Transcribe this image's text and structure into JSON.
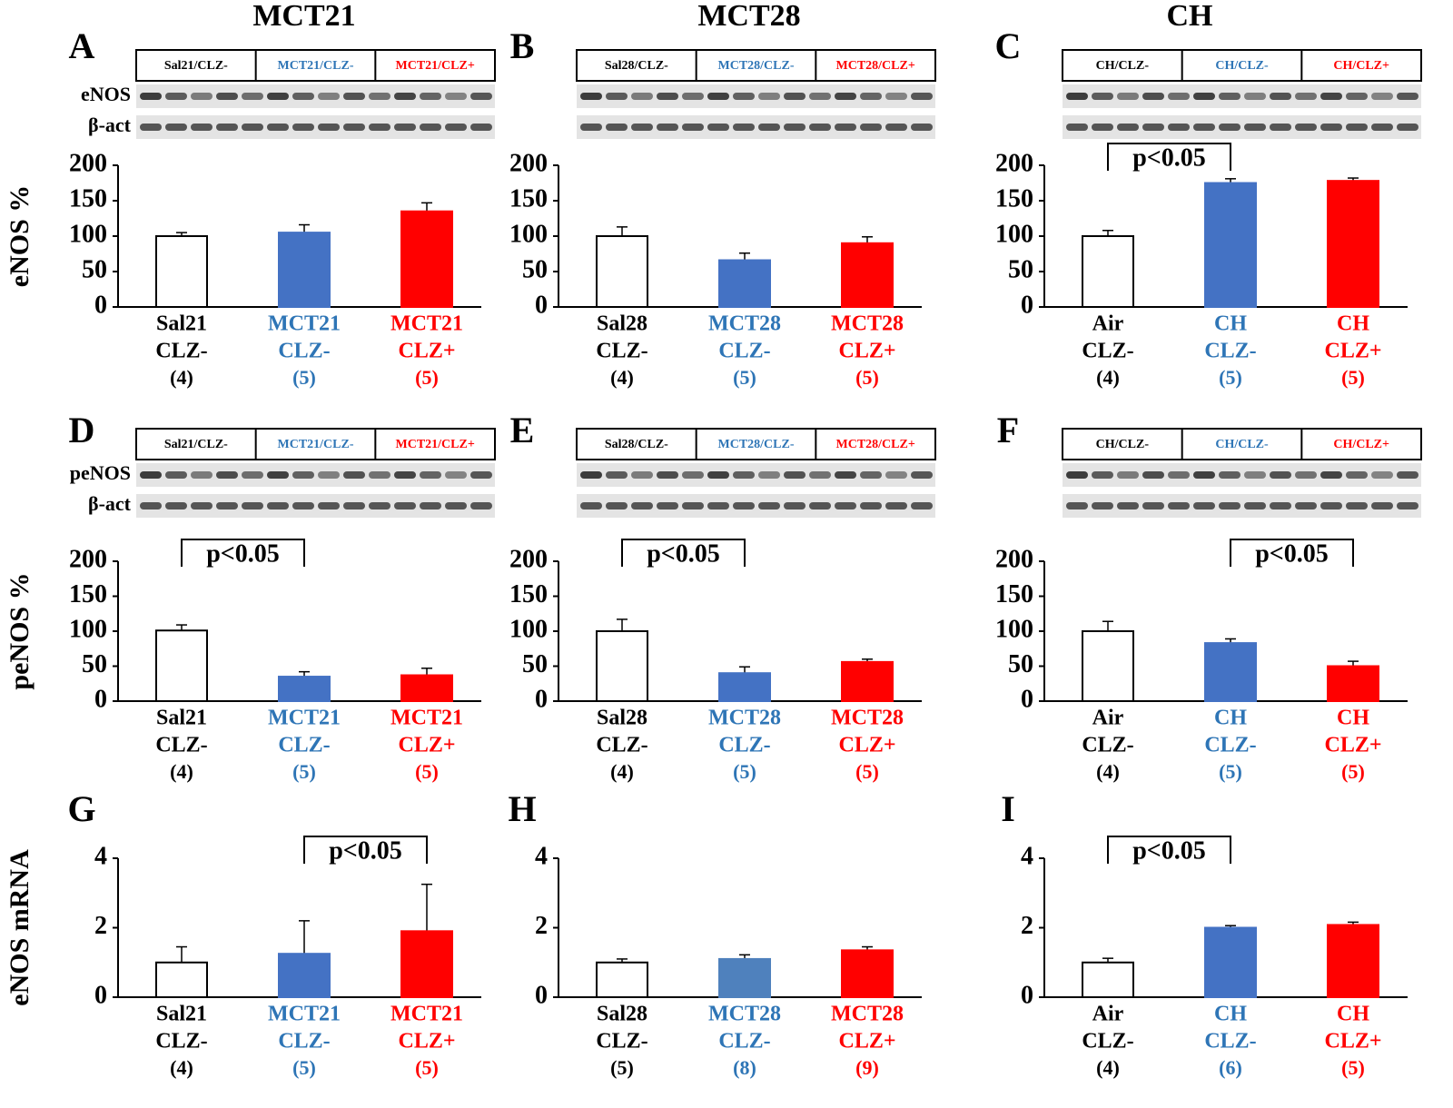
{
  "column_titles": [
    "MCT21",
    "MCT28",
    "CH"
  ],
  "chart_data": [
    {
      "type": "bar",
      "panel_label": "A",
      "ylabel": "eNOS %",
      "blot_labels": [
        "Sal21/CLZ-",
        "MCT21/CLZ-",
        "MCT21/CLZ+"
      ],
      "blot_rows": [
        "eNOS",
        "β-act"
      ],
      "categories": [
        [
          "Sal21",
          "CLZ-",
          "(4)"
        ],
        [
          "MCT21",
          "CLZ-",
          "(5)"
        ],
        [
          "MCT21",
          "CLZ+",
          "(5)"
        ]
      ],
      "values": [
        100,
        105,
        135
      ],
      "errors": [
        5,
        11,
        12
      ],
      "colors": [
        "#ffffff",
        "#4472c4",
        "#ff0000"
      ],
      "category_colors": [
        "#000000",
        "#2e75b6",
        "#ff0000"
      ],
      "ylim": [
        0,
        200
      ],
      "yticks": [
        0,
        50,
        100,
        150,
        200
      ],
      "annotations": []
    },
    {
      "type": "bar",
      "panel_label": "B",
      "blot_labels": [
        "Sal28/CLZ-",
        "MCT28/CLZ-",
        "MCT28/CLZ+"
      ],
      "categories": [
        [
          "Sal28",
          "CLZ-",
          "(4)"
        ],
        [
          "MCT28",
          "CLZ-",
          "(5)"
        ],
        [
          "MCT28",
          "CLZ+",
          "(5)"
        ]
      ],
      "values": [
        100,
        66,
        90
      ],
      "errors": [
        13,
        10,
        9
      ],
      "colors": [
        "#ffffff",
        "#4472c4",
        "#ff0000"
      ],
      "category_colors": [
        "#000000",
        "#2e75b6",
        "#ff0000"
      ],
      "ylim": [
        0,
        200
      ],
      "yticks": [
        0,
        50,
        100,
        150,
        200
      ],
      "annotations": []
    },
    {
      "type": "bar",
      "panel_label": "C",
      "blot_labels": [
        "CH/CLZ-",
        "CH/CLZ-",
        "CH/CLZ+"
      ],
      "categories": [
        [
          "Air",
          "CLZ-",
          "(4)"
        ],
        [
          "CH",
          "CLZ-",
          "(5)"
        ],
        [
          "CH",
          "CLZ+",
          "(5)"
        ]
      ],
      "values": [
        100,
        175,
        178
      ],
      "errors": [
        8,
        6,
        4
      ],
      "colors": [
        "#ffffff",
        "#4472c4",
        "#ff0000"
      ],
      "category_colors": [
        "#000000",
        "#2e75b6",
        "#ff0000"
      ],
      "ylim": [
        0,
        200
      ],
      "yticks": [
        0,
        50,
        100,
        150,
        200
      ],
      "annotations": [
        {
          "text": "p<0.05",
          "from": 0,
          "to": 1
        }
      ]
    },
    {
      "type": "bar",
      "panel_label": "D",
      "ylabel": "peNOS %",
      "blot_labels": [
        "Sal21/CLZ-",
        "MCT21/CLZ-",
        "MCT21/CLZ+"
      ],
      "blot_rows": [
        "peNOS",
        "β-act"
      ],
      "categories": [
        [
          "Sal21",
          "CLZ-",
          "(4)"
        ],
        [
          "MCT21",
          "CLZ-",
          "(5)"
        ],
        [
          "MCT21",
          "CLZ+",
          "(5)"
        ]
      ],
      "values": [
        101,
        35,
        37
      ],
      "errors": [
        8,
        7,
        10
      ],
      "colors": [
        "#ffffff",
        "#4472c4",
        "#ff0000"
      ],
      "category_colors": [
        "#000000",
        "#2e75b6",
        "#ff0000"
      ],
      "ylim": [
        0,
        200
      ],
      "yticks": [
        0,
        50,
        100,
        150,
        200
      ],
      "annotations": [
        {
          "text": "p<0.05",
          "from": 0,
          "to": 1
        }
      ]
    },
    {
      "type": "bar",
      "panel_label": "E",
      "blot_labels": [
        "Sal28/CLZ-",
        "MCT28/CLZ-",
        "MCT28/CLZ+"
      ],
      "categories": [
        [
          "Sal28",
          "CLZ-",
          "(4)"
        ],
        [
          "MCT28",
          "CLZ-",
          "(5)"
        ],
        [
          "MCT28",
          "CLZ+",
          "(5)"
        ]
      ],
      "values": [
        100,
        40,
        56
      ],
      "errors": [
        17,
        9,
        4
      ],
      "colors": [
        "#ffffff",
        "#4472c4",
        "#ff0000"
      ],
      "category_colors": [
        "#000000",
        "#2e75b6",
        "#ff0000"
      ],
      "ylim": [
        0,
        200
      ],
      "yticks": [
        0,
        50,
        100,
        150,
        200
      ],
      "annotations": [
        {
          "text": "p<0.05",
          "from": 0,
          "to": 1
        }
      ]
    },
    {
      "type": "bar",
      "panel_label": "F",
      "blot_labels": [
        "CH/CLZ-",
        "CH/CLZ-",
        "CH/CLZ+"
      ],
      "categories": [
        [
          "Air",
          "CLZ-",
          "(4)"
        ],
        [
          "CH",
          "CLZ-",
          "(5)"
        ],
        [
          "CH",
          "CLZ+",
          "(5)"
        ]
      ],
      "values": [
        100,
        83,
        50
      ],
      "errors": [
        14,
        6,
        7
      ],
      "colors": [
        "#ffffff",
        "#4472c4",
        "#ff0000"
      ],
      "category_colors": [
        "#000000",
        "#2e75b6",
        "#ff0000"
      ],
      "ylim": [
        0,
        200
      ],
      "yticks": [
        0,
        50,
        100,
        150,
        200
      ],
      "annotations": [
        {
          "text": "p<0.05",
          "from": 1,
          "to": 2
        }
      ]
    },
    {
      "type": "bar",
      "panel_label": "G",
      "ylabel": "eNOS mRNA",
      "categories": [
        [
          "Sal21",
          "CLZ-",
          "(4)"
        ],
        [
          "MCT21",
          "CLZ-",
          "(5)"
        ],
        [
          "MCT21",
          "CLZ+",
          "(5)"
        ]
      ],
      "values": [
        1.0,
        1.25,
        1.9
      ],
      "errors": [
        0.45,
        0.95,
        1.35
      ],
      "colors": [
        "#ffffff",
        "#4472c4",
        "#ff0000"
      ],
      "category_colors": [
        "#000000",
        "#2e75b6",
        "#ff0000"
      ],
      "ylim": [
        0,
        4
      ],
      "yticks": [
        0,
        2,
        4
      ],
      "annotations": [
        {
          "text": "p<0.05",
          "from": 1,
          "to": 2
        }
      ]
    },
    {
      "type": "bar",
      "panel_label": "H",
      "categories": [
        [
          "Sal28",
          "CLZ-",
          "(5)"
        ],
        [
          "MCT28",
          "CLZ-",
          "(8)"
        ],
        [
          "MCT28",
          "CLZ+",
          "(9)"
        ]
      ],
      "values": [
        1.0,
        1.1,
        1.35
      ],
      "errors": [
        0.1,
        0.12,
        0.1
      ],
      "colors": [
        "#ffffff",
        "#4f81bd",
        "#ff0000"
      ],
      "category_colors": [
        "#000000",
        "#2e75b6",
        "#ff0000"
      ],
      "ylim": [
        0,
        4
      ],
      "yticks": [
        0,
        2,
        4
      ],
      "annotations": []
    },
    {
      "type": "bar",
      "panel_label": "I",
      "categories": [
        [
          "Air",
          "CLZ-",
          "(4)"
        ],
        [
          "CH",
          "CLZ-",
          "(6)"
        ],
        [
          "CH",
          "CLZ+",
          "(5)"
        ]
      ],
      "values": [
        1.0,
        2.0,
        2.08
      ],
      "errors": [
        0.12,
        0.06,
        0.08
      ],
      "colors": [
        "#ffffff",
        "#4472c4",
        "#ff0000"
      ],
      "category_colors": [
        "#000000",
        "#2e75b6",
        "#ff0000"
      ],
      "ylim": [
        0,
        4
      ],
      "yticks": [
        0,
        2,
        4
      ],
      "annotations": [
        {
          "text": "p<0.05",
          "from": 0,
          "to": 1
        }
      ]
    }
  ]
}
